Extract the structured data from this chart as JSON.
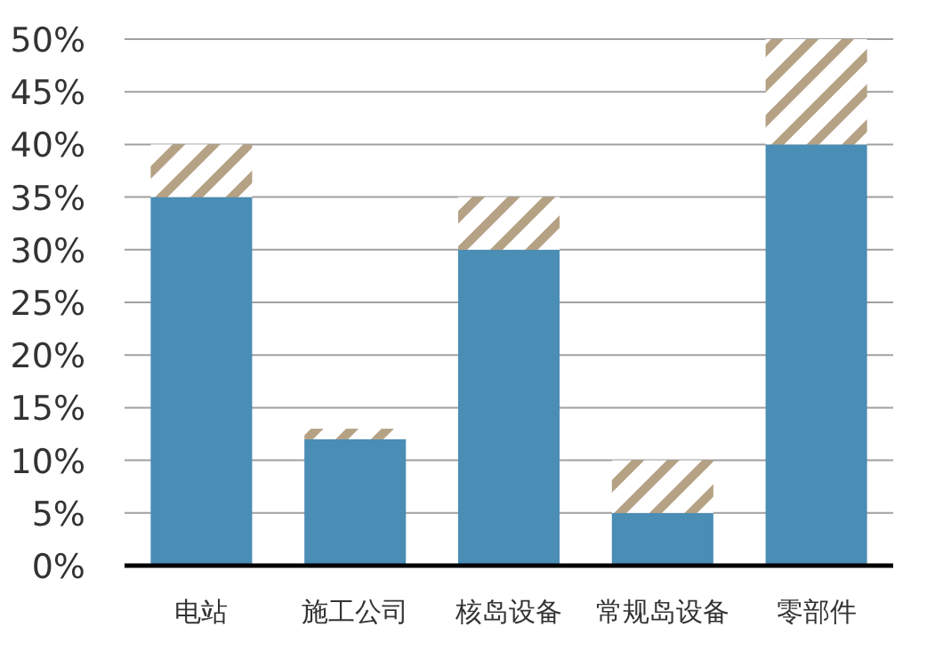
{
  "chart_data": {
    "type": "bar",
    "stacked": true,
    "categories": [
      "电站",
      "施工公司",
      "核岛设备",
      "常规岛设备",
      "零部件"
    ],
    "series": [
      {
        "color": "#4a8db5",
        "values": [
          35,
          12,
          30,
          5,
          40
        ]
      },
      {
        "color": "#b5a184",
        "values": [
          5,
          1,
          5,
          5,
          10
        ]
      }
    ],
    "ylim": [
      0,
      50
    ],
    "yticks": [
      {
        "value": 0,
        "label": "0%"
      },
      {
        "value": 5,
        "label": "5%"
      },
      {
        "value": 10,
        "label": "10%"
      },
      {
        "value": 15,
        "label": "15%"
      },
      {
        "value": 20,
        "label": "20%"
      },
      {
        "value": 25,
        "label": "25%"
      },
      {
        "value": 30,
        "label": "30%"
      },
      {
        "value": 35,
        "label": "35%"
      },
      {
        "value": 40,
        "label": "40%"
      },
      {
        "value": 45,
        "label": "45%"
      },
      {
        "value": 50,
        "label": "50%"
      }
    ],
    "grid": "y"
  }
}
